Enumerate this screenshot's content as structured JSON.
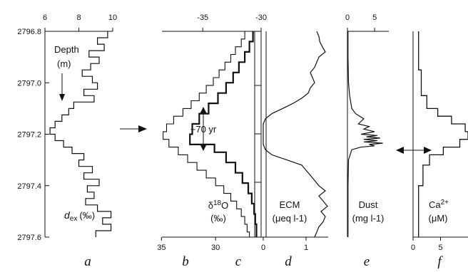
{
  "chart_data": {
    "type": "line",
    "depth_axis": {
      "label": "Depth (m)",
      "ticks": [
        "2796.8",
        "2797.0",
        "2797.2",
        "2797.4",
        "2797.6"
      ],
      "ylim": [
        2796.8,
        2797.6
      ]
    },
    "panels": [
      {
        "letter": "a",
        "label": "dex (‰)",
        "label_main": "d",
        "label_sub": "ex",
        "label_unit": "(‰)",
        "xlim": [
          6,
          10
        ],
        "top_ticks": [
          "6",
          "8",
          "10"
        ],
        "series": [
          {
            "name": "dex",
            "step_depths": [
              2796.8,
              2796.825,
              2796.85,
              2796.875,
              2796.9,
              2796.925,
              2796.95,
              2796.975,
              2797.0,
              2797.025,
              2797.05,
              2797.075,
              2797.1,
              2797.125,
              2797.15,
              2797.175,
              2797.2,
              2797.225,
              2797.25,
              2797.275,
              2797.3,
              2797.325,
              2797.35,
              2797.375,
              2797.4,
              2797.425,
              2797.45,
              2797.475,
              2797.5,
              2797.525,
              2797.55,
              2797.575,
              2797.6
            ],
            "values": [
              9.7,
              9.1,
              9.5,
              8.6,
              9.2,
              8.7,
              8.2,
              8.8,
              9.1,
              8.3,
              8.9,
              7.7,
              7.4,
              7.0,
              6.6,
              6.3,
              6.6,
              7.1,
              7.6,
              8.3,
              8.0,
              8.8,
              8.3,
              9.2,
              8.5,
              8.9,
              8.4,
              9.1,
              9.9,
              9.4,
              9.9,
              9.0
            ]
          }
        ]
      },
      {
        "letter": "b, c",
        "label": "δ18O (‰)",
        "label_main": "δ",
        "label_sup": "18",
        "label_tail": "O",
        "label_unit": "(‰)",
        "xlim": [
          -38.5,
          -30
        ],
        "top_ticks": [
          "-35",
          "-30"
        ],
        "bottom_ticks": [
          "35",
          "30"
        ],
        "bottom_xlim": [
          37.0,
          25.0
        ],
        "annotation": "~70 yr",
        "series": [
          {
            "name": "b",
            "step_depths": [
              2796.8,
              2796.83,
              2796.86,
              2796.89,
              2796.92,
              2796.95,
              2796.98,
              2797.01,
              2797.04,
              2797.07,
              2797.1,
              2797.13,
              2797.16,
              2797.19,
              2797.22,
              2797.25,
              2797.28,
              2797.31,
              2797.34,
              2797.37,
              2797.4,
              2797.43,
              2797.46,
              2797.49,
              2797.52,
              2797.55,
              2797.58,
              2797.6
            ],
            "values": [
              -31.4,
              -31.7,
              -32.2,
              -32.6,
              -33.1,
              -33.6,
              -34.1,
              -34.7,
              -35.3,
              -36.0,
              -36.7,
              -37.5,
              -38.1,
              -38.4,
              -37.9,
              -37.1,
              -36.3,
              -35.5,
              -34.7,
              -33.9,
              -33.2,
              -32.6,
              -32.1,
              -31.7,
              -31.4,
              -31.2,
              -31.0
            ]
          },
          {
            "name": "c",
            "step_depths": [
              2796.8,
              2796.84,
              2796.88,
              2796.92,
              2796.96,
              2797.0,
              2797.04,
              2797.08,
              2797.12,
              2797.16,
              2797.2,
              2797.24,
              2797.27,
              2797.31,
              2797.35,
              2797.39,
              2797.43,
              2797.47,
              2797.51,
              2797.55,
              2797.6
            ],
            "values": [
              -30.7,
              -31.0,
              -31.4,
              -31.9,
              -32.4,
              -33.0,
              -33.7,
              -34.5,
              -35.3,
              -35.9,
              -36.1,
              -34.0,
              -33.0,
              -32.2,
              -31.6,
              -31.1,
              -30.8,
              -30.6,
              -30.5,
              -30.4
            ]
          }
        ]
      },
      {
        "letter": "d",
        "label": "ECM (μeq l-1)",
        "label_main": "ECM",
        "label_unit": "(μeq l-1)",
        "xlim": [
          -0.15,
          1.6
        ],
        "bottom_ticks": [
          "0",
          "1"
        ],
        "series": [
          {
            "name": "ECM",
            "depths": [
              2796.8,
              2796.82,
              2796.84,
              2796.86,
              2796.88,
              2796.9,
              2796.92,
              2796.94,
              2796.96,
              2796.98,
              2797.0,
              2797.02,
              2797.04,
              2797.06,
              2797.08,
              2797.1,
              2797.12,
              2797.14,
              2797.16,
              2797.2,
              2797.24,
              2797.26,
              2797.28,
              2797.3,
              2797.32,
              2797.34,
              2797.36,
              2797.38,
              2797.4,
              2797.42,
              2797.44,
              2797.46,
              2797.48,
              2797.5,
              2797.52,
              2797.54,
              2797.56,
              2797.58,
              2797.6
            ],
            "values": [
              1.25,
              1.3,
              1.32,
              1.38,
              1.45,
              1.3,
              1.25,
              1.2,
              1.1,
              1.15,
              1.2,
              1.1,
              1.05,
              0.9,
              0.7,
              0.45,
              0.2,
              0.05,
              0.0,
              0.0,
              0.0,
              0.05,
              0.2,
              0.55,
              0.9,
              1.0,
              1.1,
              1.2,
              1.3,
              1.45,
              1.3,
              1.4,
              1.5,
              1.35,
              1.45,
              1.4,
              1.3,
              1.25,
              1.2
            ]
          }
        ]
      },
      {
        "letter": "e",
        "label": "Dust (mg l-1)",
        "label_main": "Dust",
        "label_unit": "(mg l-1)",
        "xlim": [
          0,
          8
        ],
        "top_ticks": [
          "0",
          "5"
        ],
        "series": [
          {
            "name": "Dust",
            "depths": [
              2796.8,
              2796.9,
              2797.0,
              2797.05,
              2797.1,
              2797.12,
              2797.14,
              2797.16,
              2797.17,
              2797.18,
              2797.19,
              2797.2,
              2797.205,
              2797.21,
              2797.215,
              2797.22,
              2797.225,
              2797.23,
              2797.235,
              2797.24,
              2797.245,
              2797.25,
              2797.26,
              2797.3,
              2797.4,
              2797.5,
              2797.6
            ],
            "values": [
              0.1,
              0.1,
              0.2,
              0.4,
              0.8,
              1.5,
              3.0,
              2.0,
              4.0,
              3.0,
              5.0,
              2.5,
              5.5,
              3.5,
              6.0,
              3.0,
              5.5,
              3.0,
              6.5,
              4.0,
              5.0,
              2.5,
              0.8,
              0.2,
              0.1,
              0.1,
              0.1
            ]
          }
        ]
      },
      {
        "letter": "f",
        "label": "Ca2+ (μM)",
        "label_main": "Ca",
        "label_sup": "2+",
        "label_unit": "(μM)",
        "xlim": [
          0,
          10
        ],
        "bottom_ticks": [
          "0",
          "5"
        ],
        "series": [
          {
            "name": "Ca2+",
            "step_depths": [
              2796.8,
              2796.95,
              2797.05,
              2797.1,
              2797.13,
              2797.16,
              2797.19,
              2797.22,
              2797.25,
              2797.28,
              2797.32,
              2797.4,
              2797.6
            ],
            "values": [
              1.0,
              1.5,
              2.5,
              4.5,
              7.0,
              9.5,
              10.0,
              8.5,
              5.5,
              3.0,
              1.8,
              1.0
            ]
          }
        ]
      }
    ]
  }
}
